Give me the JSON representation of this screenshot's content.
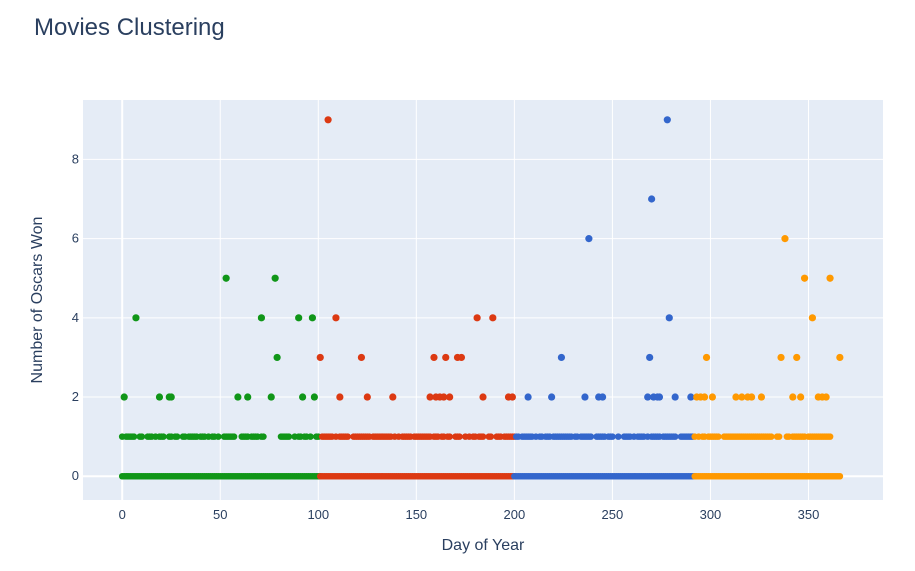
{
  "chart_data": {
    "type": "scatter",
    "title": "Movies Clustering",
    "xlabel": "Day of Year",
    "ylabel": "Number of Oscars Won",
    "xlim": [
      -20,
      388
    ],
    "ylim": [
      -0.6,
      9.5
    ],
    "x_ticks": [
      0,
      50,
      100,
      150,
      200,
      250,
      300,
      350
    ],
    "y_ticks": [
      0,
      2,
      4,
      6,
      8
    ],
    "grid": true,
    "legend": "none",
    "colors": {
      "cluster_1": "#109618",
      "cluster_2": "#dc3912",
      "cluster_3": "#3366cc",
      "cluster_4": "#ff9900",
      "plot_bg": "#e5ecf6",
      "grid": "#ffffff",
      "text": "#2a3f5f"
    },
    "series": [
      {
        "color": "#109618",
        "bands": [
          {
            "y": 0,
            "from": 0,
            "to": 101
          },
          {
            "y": 1,
            "from": 0,
            "to": 101,
            "density": 0.55
          }
        ],
        "x": [
          1,
          7,
          19,
          24,
          25,
          53,
          59,
          64,
          71,
          76,
          78,
          79,
          90,
          92,
          97,
          98
        ],
        "y": [
          2,
          4,
          2,
          2,
          2,
          5,
          2,
          2,
          4,
          2,
          5,
          3,
          4,
          2,
          4,
          2
        ]
      },
      {
        "color": "#dc3912",
        "bands": [
          {
            "y": 0,
            "from": 101,
            "to": 200
          },
          {
            "y": 1,
            "from": 101,
            "to": 200,
            "density": 0.72
          }
        ],
        "x": [
          101,
          105,
          109,
          111,
          122,
          125,
          138,
          157,
          159,
          160,
          162,
          164,
          165,
          167,
          171,
          173,
          181,
          184,
          189,
          197,
          199
        ],
        "y": [
          3,
          9,
          4,
          2,
          3,
          2,
          2,
          2,
          3,
          2,
          2,
          2,
          3,
          2,
          3,
          3,
          4,
          2,
          4,
          2,
          2
        ]
      },
      {
        "color": "#3366cc",
        "bands": [
          {
            "y": 0,
            "from": 200,
            "to": 292
          },
          {
            "y": 1,
            "from": 201,
            "to": 292,
            "density": 0.72
          }
        ],
        "x": [
          207,
          219,
          224,
          236,
          238,
          243,
          245,
          268,
          269,
          270,
          271,
          273,
          274,
          278,
          279,
          282,
          290
        ],
        "y": [
          2,
          2,
          3,
          2,
          6,
          2,
          2,
          2,
          3,
          7,
          2,
          2,
          2,
          9,
          4,
          2,
          2
        ]
      },
      {
        "color": "#ff9900",
        "bands": [
          {
            "y": 0,
            "from": 292,
            "to": 366
          },
          {
            "y": 1,
            "from": 292,
            "to": 361,
            "density": 0.78
          }
        ],
        "x": [
          293,
          295,
          297,
          298,
          301,
          313,
          316,
          319,
          321,
          326,
          336,
          338,
          342,
          344,
          346,
          348,
          352,
          355,
          357,
          359,
          361,
          366
        ],
        "y": [
          2,
          2,
          2,
          3,
          2,
          2,
          2,
          2,
          2,
          2,
          3,
          6,
          2,
          3,
          2,
          5,
          4,
          2,
          2,
          2,
          5,
          3
        ]
      }
    ]
  }
}
